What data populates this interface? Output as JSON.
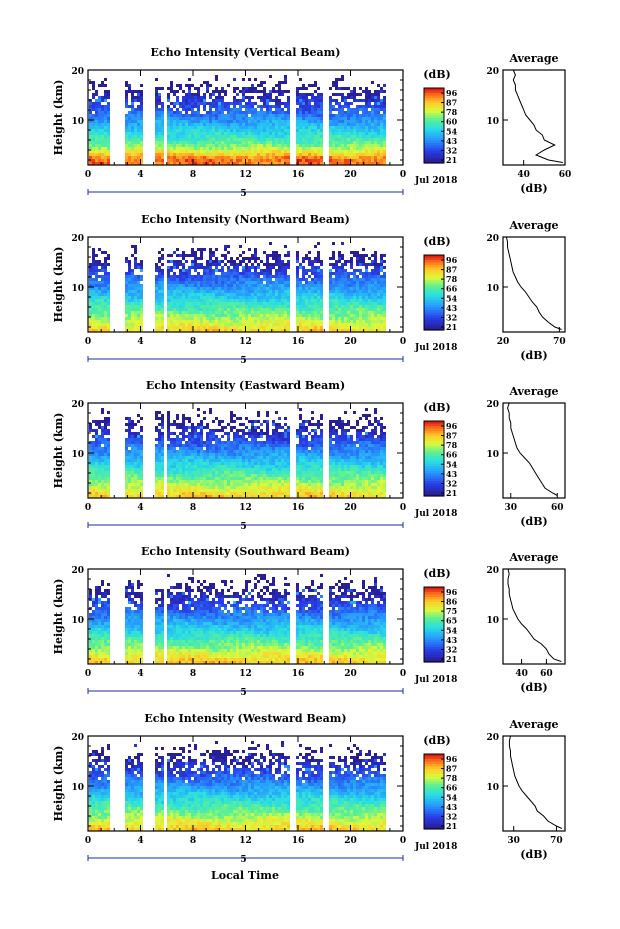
{
  "figure": {
    "xlabel": "Local Time",
    "date_label": "Jul 2018",
    "day_label": "5",
    "side_title": "Average",
    "side_xlabel": "(dB)",
    "cb_unit": "(dB)",
    "ylabel": "Height (km)"
  },
  "chart_data": [
    {
      "type": "heatmap",
      "title": "Echo Intensity (Vertical Beam)",
      "xlabel": "Local Time",
      "ylabel": "Height (km)",
      "xticks": [
        "0",
        "4",
        "8",
        "12",
        "16",
        "20",
        "0"
      ],
      "xlim": [
        0,
        24
      ],
      "ylim": [
        1,
        20
      ],
      "yticks": [
        "10",
        "20"
      ],
      "colorbar": {
        "label": "(dB)",
        "ticks": [
          "96",
          "87",
          "78",
          "60",
          "54",
          "43",
          "32",
          "21"
        ]
      },
      "data_gaps_hours": [
        [
          1.6,
          2.7
        ],
        [
          4.0,
          5.1
        ],
        [
          5.6,
          6.0
        ],
        [
          15.3,
          15.7
        ],
        [
          17.9,
          18.2
        ],
        [
          22.7,
          23.0
        ]
      ],
      "profile": {
        "title": "Average",
        "xlabel": "(dB)",
        "xlim": [
          30,
          60
        ],
        "xticks": [
          "40",
          "60"
        ],
        "yticks": [
          "10",
          "20"
        ],
        "height_km": [
          1.5,
          2,
          3,
          4,
          5,
          6,
          7,
          8,
          9,
          10,
          11,
          12,
          13,
          14,
          15,
          16,
          17,
          18,
          19,
          20
        ],
        "values_db": [
          59,
          52,
          46,
          50,
          55,
          50,
          49,
          46,
          45,
          43,
          41,
          40,
          39,
          38,
          37,
          36,
          36,
          35,
          36,
          35
        ]
      }
    },
    {
      "type": "heatmap",
      "title": "Echo Intensity (Northward Beam)",
      "xlabel": "Local Time",
      "ylabel": "Height (km)",
      "xticks": [
        "0",
        "4",
        "8",
        "12",
        "16",
        "20",
        "0"
      ],
      "xlim": [
        0,
        24
      ],
      "ylim": [
        1,
        20
      ],
      "yticks": [
        "10",
        "20"
      ],
      "colorbar": {
        "label": "(dB)",
        "ticks": [
          "96",
          "87",
          "78",
          "66",
          "54",
          "43",
          "32",
          "21"
        ]
      },
      "data_gaps_hours": [
        [
          1.6,
          2.7
        ],
        [
          4.0,
          5.1
        ],
        [
          5.6,
          6.0
        ],
        [
          15.3,
          15.7
        ],
        [
          17.9,
          18.2
        ],
        [
          22.7,
          23.0
        ]
      ],
      "profile": {
        "title": "Average",
        "xlabel": "(dB)",
        "xlim": [
          20,
          75
        ],
        "xticks": [
          "20",
          "70"
        ],
        "yticks": [
          "10",
          "20"
        ],
        "height_km": [
          1.5,
          2,
          3,
          4,
          5,
          6,
          7,
          8,
          9,
          10,
          11,
          12,
          13,
          14,
          15,
          16,
          17,
          18,
          19,
          20
        ],
        "values_db": [
          72,
          66,
          60,
          55,
          52,
          50,
          46,
          43,
          40,
          36,
          33,
          31,
          29,
          28,
          27,
          26,
          25,
          24,
          24,
          23
        ]
      }
    },
    {
      "type": "heatmap",
      "title": "Echo Intensity (Eastward Beam)",
      "xlabel": "Local Time",
      "ylabel": "Height (km)",
      "xticks": [
        "0",
        "4",
        "8",
        "12",
        "16",
        "20",
        "0"
      ],
      "xlim": [
        0,
        24
      ],
      "ylim": [
        1,
        20
      ],
      "yticks": [
        "10",
        "20"
      ],
      "colorbar": {
        "label": "(dB)",
        "ticks": [
          "96",
          "87",
          "78",
          "66",
          "54",
          "43",
          "32",
          "21"
        ]
      },
      "data_gaps_hours": [
        [
          1.6,
          2.7
        ],
        [
          4.0,
          5.1
        ],
        [
          5.6,
          6.0
        ],
        [
          15.3,
          15.7
        ],
        [
          17.9,
          18.2
        ],
        [
          22.7,
          23.0
        ]
      ],
      "profile": {
        "title": "Average",
        "xlabel": "(dB)",
        "xlim": [
          25,
          65
        ],
        "xticks": [
          "30",
          "60"
        ],
        "yticks": [
          "10",
          "20"
        ],
        "height_km": [
          1.5,
          2,
          3,
          4,
          5,
          6,
          7,
          8,
          9,
          10,
          11,
          12,
          13,
          14,
          15,
          16,
          17,
          18,
          19,
          20
        ],
        "values_db": [
          60,
          57,
          52,
          50,
          48,
          46,
          44,
          42,
          39,
          36,
          34,
          33,
          32,
          31,
          30,
          30,
          29,
          29,
          28,
          29
        ]
      }
    },
    {
      "type": "heatmap",
      "title": "Echo Intensity (Southward Beam)",
      "xlabel": "Local Time",
      "ylabel": "Height (km)",
      "xticks": [
        "0",
        "4",
        "8",
        "12",
        "16",
        "20",
        "0"
      ],
      "xlim": [
        0,
        24
      ],
      "ylim": [
        1,
        20
      ],
      "yticks": [
        "10",
        "20"
      ],
      "colorbar": {
        "label": "(dB)",
        "ticks": [
          "96",
          "86",
          "75",
          "65",
          "54",
          "43",
          "32",
          "21"
        ]
      },
      "data_gaps_hours": [
        [
          1.6,
          2.7
        ],
        [
          4.0,
          5.1
        ],
        [
          5.6,
          6.0
        ],
        [
          15.3,
          15.7
        ],
        [
          17.9,
          18.2
        ],
        [
          22.7,
          23.0
        ]
      ],
      "profile": {
        "title": "Average",
        "xlabel": "(dB)",
        "xlim": [
          25,
          75
        ],
        "xticks": [
          "40",
          "60"
        ],
        "yticks": [
          "10",
          "20"
        ],
        "height_km": [
          1.5,
          2,
          3,
          4,
          5,
          6,
          7,
          8,
          9,
          10,
          11,
          12,
          13,
          14,
          15,
          16,
          17,
          18,
          19,
          20
        ],
        "values_db": [
          72,
          66,
          62,
          60,
          56,
          50,
          47,
          44,
          40,
          37,
          35,
          33,
          32,
          31,
          30,
          30,
          29,
          29,
          30,
          29
        ]
      }
    },
    {
      "type": "heatmap",
      "title": "Echo Intensity (Westward Beam)",
      "xlabel": "Local Time",
      "ylabel": "Height (km)",
      "xticks": [
        "0",
        "4",
        "8",
        "12",
        "16",
        "20",
        "0"
      ],
      "xlim": [
        0,
        24
      ],
      "ylim": [
        1,
        20
      ],
      "yticks": [
        "10",
        "20"
      ],
      "colorbar": {
        "label": "(dB)",
        "ticks": [
          "96",
          "87",
          "78",
          "66",
          "54",
          "43",
          "32",
          "21"
        ]
      },
      "data_gaps_hours": [
        [
          1.6,
          2.7
        ],
        [
          4.0,
          5.1
        ],
        [
          5.6,
          6.0
        ],
        [
          15.3,
          15.7
        ],
        [
          17.9,
          18.2
        ],
        [
          22.7,
          23.0
        ]
      ],
      "profile": {
        "title": "Average",
        "xlabel": "(dB)",
        "xlim": [
          20,
          78
        ],
        "xticks": [
          "30",
          "70"
        ],
        "yticks": [
          "10",
          "20"
        ],
        "height_km": [
          1.5,
          2,
          3,
          4,
          5,
          6,
          7,
          8,
          9,
          10,
          11,
          12,
          13,
          14,
          15,
          16,
          17,
          18,
          19,
          20
        ],
        "values_db": [
          75,
          70,
          62,
          58,
          52,
          50,
          46,
          42,
          38,
          35,
          33,
          31,
          30,
          29,
          28,
          27,
          27,
          26,
          26,
          27
        ]
      }
    }
  ]
}
